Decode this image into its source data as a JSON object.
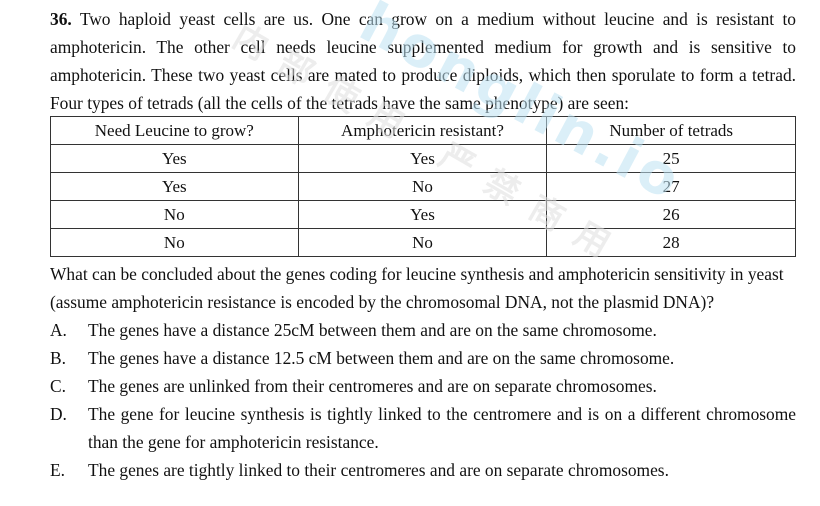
{
  "question": {
    "number": "36.",
    "text": "Two haploid yeast cells are us. One can grow on a medium without leucine and is resistant to amphotericin. The other cell needs leucine supplemented medium for growth and is sensitive to amphotericin. These two yeast cells are mated to produce diploids, which then sporulate to form a tetrad. Four types of tetrads (all the cells of the tetrads have the same phenotype) are seen:"
  },
  "table": {
    "headers": [
      "Need Leucine to grow?",
      "Amphotericin resistant?",
      "Number of tetrads"
    ],
    "rows": [
      {
        "leucine": "Yes",
        "resistant": "Yes",
        "count": "25"
      },
      {
        "leucine": "Yes",
        "resistant": "No",
        "count": "27"
      },
      {
        "leucine": "No",
        "resistant": "Yes",
        "count": "26"
      },
      {
        "leucine": "No",
        "resistant": "No",
        "count": "28"
      }
    ]
  },
  "followup": "What can be concluded about the genes coding for leucine synthesis and amphotericin sensitivity in yeast (assume amphotericin resistance is encoded by the chromosomal DNA, not the plasmid DNA)?",
  "options": [
    {
      "letter": "A.",
      "text": "The genes have a distance 25cM between them and are on the same chromosome."
    },
    {
      "letter": "B.",
      "text": "The genes have a distance 12.5 cM between them and are on the same chromosome."
    },
    {
      "letter": "C.",
      "text": "The genes are unlinked from their centromeres and are on separate chromosomes."
    },
    {
      "letter": "D.",
      "text": "The gene for leucine synthesis is tightly linked to the centromere and is on a different chromosome than the gene for amphotericin resistance."
    },
    {
      "letter": "E.",
      "text": "The genes are tightly linked to their centromeres and are on separate chromosomes."
    }
  ],
  "watermark": {
    "primary": "honglin.io",
    "secondary": "内部使用 严禁商用"
  },
  "colors": {
    "text": "#111111",
    "watermark_blue": "#bfe3f3",
    "watermark_gray": "#e0e0e0",
    "table_border": "#333333"
  }
}
